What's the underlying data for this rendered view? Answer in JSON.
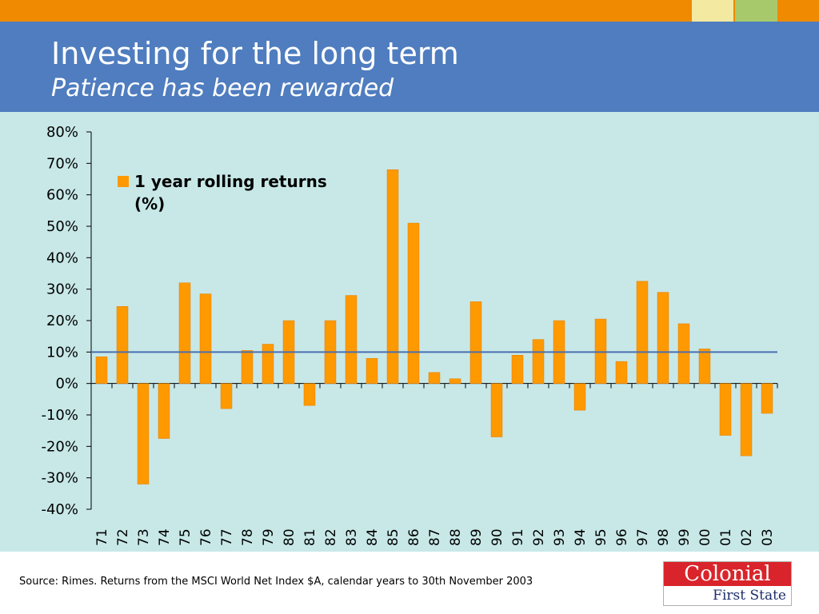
{
  "header": {
    "title": "Investing for the long term",
    "subtitle": "Patience has been rewarded"
  },
  "colors": {
    "accent_orange": "#f08a00",
    "bar_orange": "#ff9900",
    "header_blue": "#4f7dbf",
    "chart_bg": "#c8e8e8",
    "reference_line": "#4a6fb0"
  },
  "chart_data": {
    "type": "bar",
    "categories": [
      "71",
      "72",
      "73",
      "74",
      "75",
      "76",
      "77",
      "78",
      "79",
      "80",
      "81",
      "82",
      "83",
      "84",
      "85",
      "86",
      "87",
      "88",
      "89",
      "90",
      "91",
      "92",
      "93",
      "94",
      "95",
      "96",
      "97",
      "98",
      "99",
      "00",
      "01",
      "02",
      "03"
    ],
    "series": [
      {
        "name": "1 year rolling returns (%)",
        "values": [
          8.5,
          24.5,
          -32,
          -17.5,
          32,
          28.5,
          -8,
          10.5,
          12.5,
          20,
          -7,
          20,
          28,
          8,
          68,
          51,
          3.5,
          1.5,
          26,
          -17,
          9,
          14,
          20,
          -8.5,
          20.5,
          7,
          32.5,
          29,
          19,
          11,
          -16.5,
          -23,
          -9.5
        ]
      }
    ],
    "ylim": [
      -40,
      80
    ],
    "yticks": [
      "80%",
      "70%",
      "60%",
      "50%",
      "40%",
      "30%",
      "20%",
      "10%",
      "0%",
      "-10%",
      "-20%",
      "-30%",
      "-40%"
    ],
    "reference_line": 10,
    "legend": {
      "label_line1": "1 year rolling returns",
      "label_line2": "(%)",
      "placement": "top-left"
    },
    "xlabel": "",
    "ylabel": "",
    "grid": false
  },
  "footer": {
    "source": "Source: Rimes. Returns from the MSCI World Net Index $A, calendar years to 30th November 2003",
    "logo_top": "Colonial",
    "logo_bottom": "First State"
  }
}
